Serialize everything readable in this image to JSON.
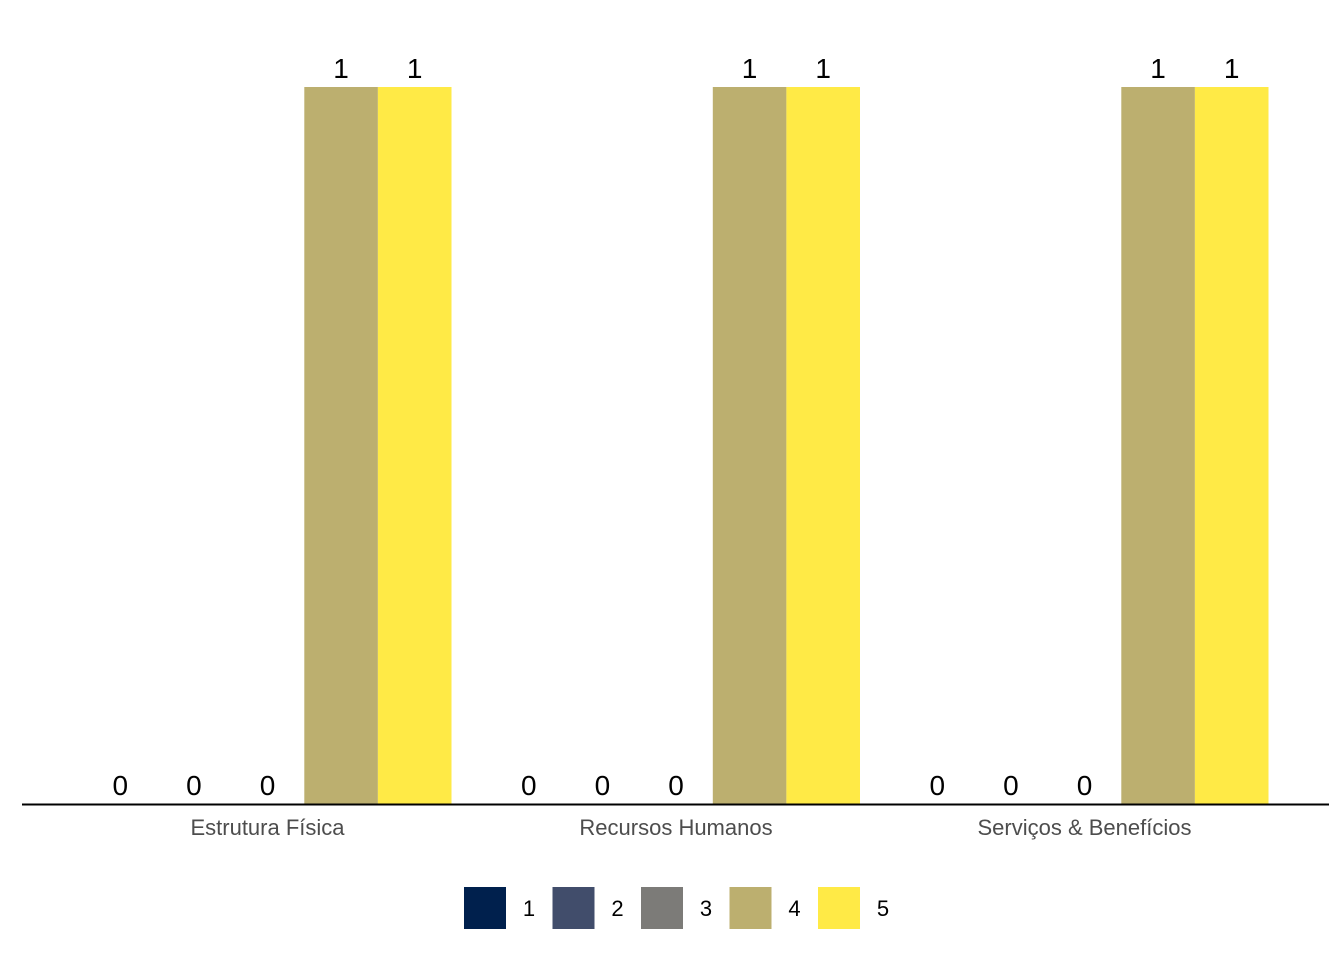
{
  "chart_data": {
    "type": "bar",
    "categories": [
      "Estrutura Física",
      "Recursos Humanos",
      "Serviços & Benefícios"
    ],
    "series": [
      {
        "name": "1",
        "color": "#00204d",
        "values": [
          0,
          0,
          0
        ]
      },
      {
        "name": "2",
        "color": "#414d6b",
        "values": [
          0,
          0,
          0
        ]
      },
      {
        "name": "3",
        "color": "#7c7b78",
        "values": [
          0,
          0,
          0
        ]
      },
      {
        "name": "4",
        "color": "#bcaf6f",
        "values": [
          1,
          1,
          1
        ]
      },
      {
        "name": "5",
        "color": "#ffea46",
        "values": [
          1,
          1,
          1
        ]
      }
    ],
    "ylim": [
      0,
      1
    ],
    "grid": false,
    "legend_position": "bottom",
    "title": "",
    "xlabel": "",
    "ylabel": ""
  }
}
